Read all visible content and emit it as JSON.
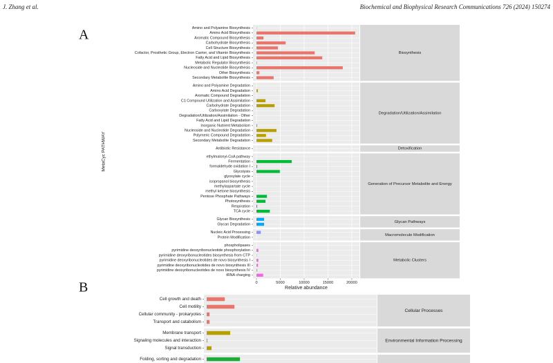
{
  "header": {
    "left": "J. Zhang et al.",
    "right": "Biochemical and Biophysical Research Communications 726 (2024) 150274"
  },
  "chart_data": [
    {
      "type": "bar",
      "orientation": "horizontal",
      "panel": "A",
      "ylabel": "MetaCyc PATHWAY",
      "xlabel": "Relative abundance",
      "xlim": [
        -725,
        21600
      ],
      "xticks": [
        0,
        5000,
        10000,
        15000,
        20000
      ],
      "grid": true,
      "facets": [
        {
          "label": "Biosynthesis",
          "color": "#e8766d",
          "categories": [
            "Amino and Polyamine Biosynthesis",
            "Amino Acid Biosynthesis",
            "Aromatic Compound Biosynthesis",
            "Carbohydrate Biosynthesis",
            "Cell Structure Biosynthesis",
            "Cofactor, Prosthetic Group, Electron Carrier, and Vitamin Biosynthesis",
            "Fatty Acid and Lipid Biosynthesis",
            "Metabolic Regulator Biosynthesis",
            "Nucleoside and Nucleotide Biosynthesis",
            "Other Biosynthesis",
            "Secondary Metabolite Biosynthesis"
          ],
          "values": [
            50,
            20700,
            1450,
            6100,
            4500,
            12200,
            13800,
            100,
            18100,
            600,
            3600
          ]
        },
        {
          "label": "Degradation/Utilization/Assimilation",
          "color": "#b79f00",
          "categories": [
            "Amino and Polyamine Degradation",
            "Amino Acid Degradation",
            "Aromatic Compound Degradation",
            "C1 Compound Utilization and Assimilation",
            "Carbohydrate Degradation",
            "Carboxylate Degradation",
            "Degradation/Utilization/Assimilation - Other",
            "Fatty Acid and Lipid Degradation",
            "Inorganic Nutrient Metabolism",
            "Nucleoside and Nucleotide Degradation",
            "Polymeric Compound Degradation",
            "Secondary Metabolite Degradation"
          ],
          "values": [
            0,
            300,
            0,
            1900,
            3800,
            0,
            0,
            0,
            150,
            4200,
            2000,
            3300
          ]
        },
        {
          "label": "Detoxification",
          "color": "#7cae00",
          "categories": [
            "Antibiotic Resistance"
          ],
          "values": [
            0
          ]
        },
        {
          "label": "Generation of Precursor Metabolite and Energy",
          "color": "#00ba38",
          "categories": [
            "ethylmalonyl-CoA pathway",
            "Fermentation",
            "formaldehyde oxidation I",
            "Glycolysis",
            "glyoxylate cycle",
            "isopropanol biosynthesis",
            "methylaspartate cycle",
            "methyl ketone biosynthesis",
            "Pentose Phosphate Pathways",
            "Photosynthesis",
            "Respiration",
            "TCA cycle"
          ],
          "values": [
            0,
            7400,
            150,
            4900,
            0,
            0,
            0,
            0,
            2200,
            1900,
            150,
            2800
          ]
        },
        {
          "label": "Glycan Pathways",
          "color": "#00a9ff",
          "categories": [
            "Glycan Biosynthesis",
            "Glycan Degradation"
          ],
          "values": [
            1600,
            1600
          ]
        },
        {
          "label": "Macromolecule Modification",
          "color": "#8f8fff",
          "categories": [
            "Nucleic Acid Processing",
            "Protein Modification"
          ],
          "values": [
            900,
            0
          ]
        },
        {
          "label": "Metabolic Clusters",
          "color": "#f564e3",
          "categories": [
            "phospholipases",
            "pyrimidine deoxyribonucleotide phosphorylation",
            "pyrimidine deoxyribonucleotides biosynthesis from CTP",
            "pyrimidine deoxyribonucleotides de novo biosynthesis I",
            "pyrimidine deoxyribonucleotides de novo biosynthesis III",
            "pyrimidine deoxyribonucleotides de novo biosynthesis IV",
            "tRNA charging"
          ],
          "values": [
            0,
            400,
            50,
            400,
            300,
            150,
            1400
          ]
        }
      ]
    },
    {
      "type": "bar",
      "orientation": "horizontal",
      "panel": "B",
      "xlim": [
        -4,
        246
      ],
      "grid": true,
      "facets": [
        {
          "label": "Cellular Processes",
          "color": "#e8766d",
          "categories": [
            "Cell growth and death",
            "Cell motility",
            "Cellular community - prokaryotes",
            "Transport and catabolism"
          ],
          "values": [
            26,
            40,
            4,
            4
          ]
        },
        {
          "label": "Environmental Information Processing",
          "color": "#b79f00",
          "categories": [
            "Membrane transport",
            "Signaling molecules and interaction",
            "Signal transduction"
          ],
          "values": [
            34,
            1,
            7
          ]
        },
        {
          "color": "#1eab3a",
          "categories": [
            "Folding, sorting and degradation"
          ],
          "values": [
            48
          ]
        }
      ]
    }
  ]
}
